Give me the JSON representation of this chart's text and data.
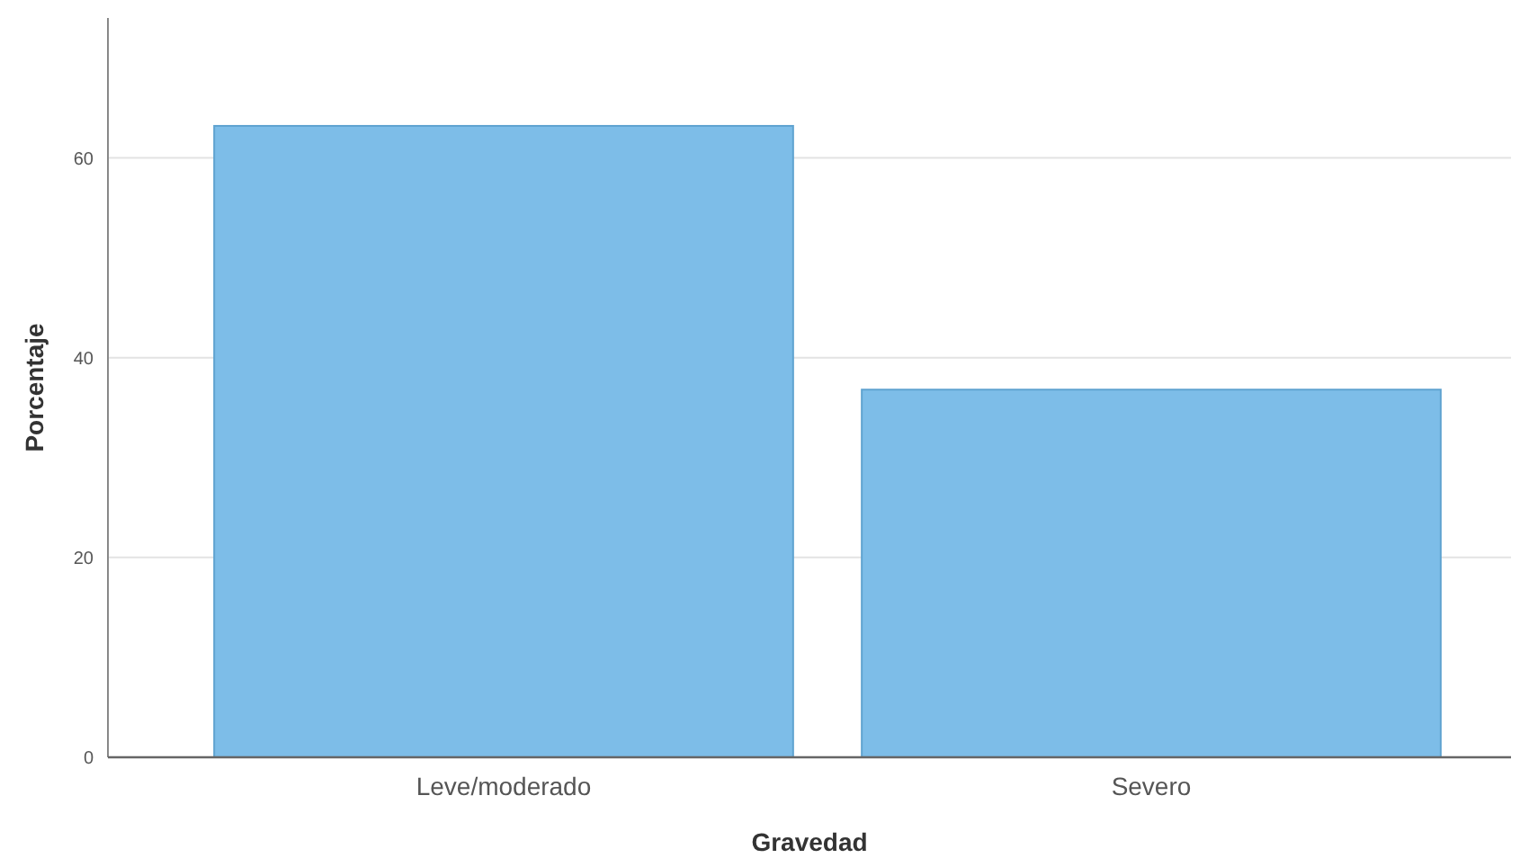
{
  "chart_data": {
    "type": "bar",
    "xlabel": "Gravedad",
    "ylabel": "Porcentaje",
    "categories": [
      "Leve/moderado",
      "Severo"
    ],
    "values": [
      63.2,
      36.8
    ],
    "color": "#7dbde8",
    "ylim": [
      0,
      74
    ],
    "yticks": [
      0,
      20,
      40,
      60
    ],
    "grid": "y"
  }
}
